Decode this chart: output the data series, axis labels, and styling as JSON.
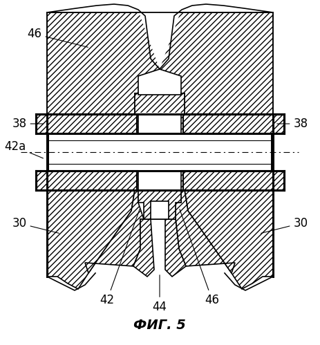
{
  "title": "ФИГ. 5",
  "bg_color": "#ffffff",
  "lc": "#000000",
  "lw": 1.2,
  "lw_thick": 2.2,
  "hatch": "////",
  "labels_fs": 12,
  "title_fs": 14
}
